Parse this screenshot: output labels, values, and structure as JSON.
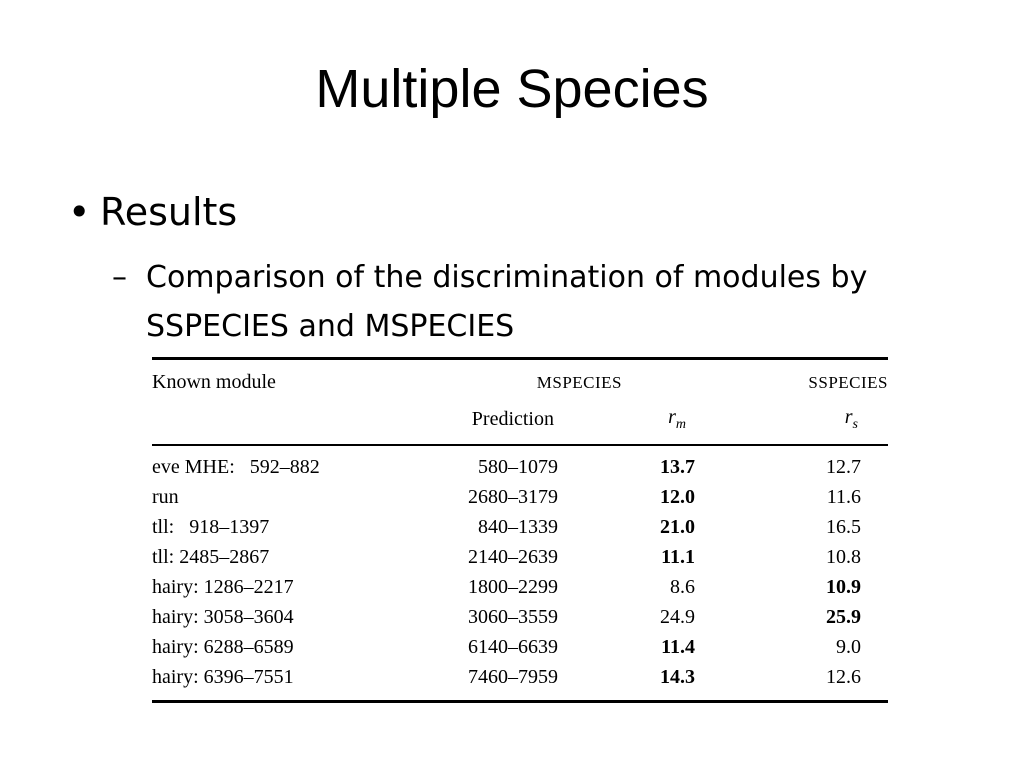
{
  "slide": {
    "title": "Multiple Species",
    "bullet_glyph": "•",
    "bullet": "Results",
    "sub_dash": "–",
    "sub_bullet": "Comparison of the discrimination of modules by SSPECIES and MSPECIES"
  },
  "table": {
    "header": {
      "known_module": "Known module",
      "mspecies": "MSPECIES",
      "sspecies": "SSPECIES",
      "prediction": "Prediction",
      "rm": "r",
      "rm_sub": "m",
      "rs": "r",
      "rs_sub": "s"
    },
    "rows": [
      {
        "module": "eve MHE:   592–882",
        "prediction": "580–1079",
        "rm": "13.7",
        "rs": "12.7",
        "bold": "rm"
      },
      {
        "module": "run",
        "prediction": "2680–3179",
        "rm": "12.0",
        "rs": "11.6",
        "bold": "rm"
      },
      {
        "module": "tll:   918–1397",
        "prediction": "840–1339",
        "rm": "21.0",
        "rs": "16.5",
        "bold": "rm"
      },
      {
        "module": "tll: 2485–2867",
        "prediction": "2140–2639",
        "rm": "11.1",
        "rs": "10.8",
        "bold": "rm"
      },
      {
        "module": "hairy: 1286–2217",
        "prediction": "1800–2299",
        "rm": "8.6",
        "rs": "10.9",
        "bold": "rs"
      },
      {
        "module": "hairy: 3058–3604",
        "prediction": "3060–3559",
        "rm": "24.9",
        "rs": "25.9",
        "bold": "rs"
      },
      {
        "module": "hairy: 6288–6589",
        "prediction": "6140–6639",
        "rm": "11.4",
        "rs": "9.0",
        "bold": "rm"
      },
      {
        "module": "hairy: 6396–7551",
        "prediction": "7460–7959",
        "rm": "14.3",
        "rs": "12.6",
        "bold": "rm"
      }
    ]
  }
}
